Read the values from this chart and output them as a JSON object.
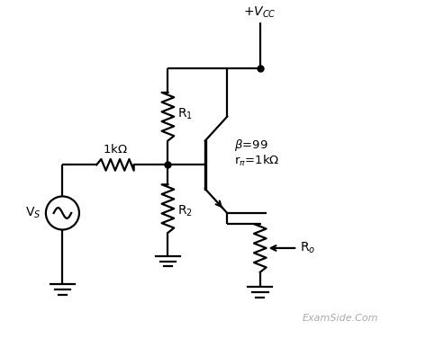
{
  "bg_color": "#ffffff",
  "line_color": "#000000",
  "resistor_color": "#000000",
  "text_color": "#000000",
  "watermark_color": "#aaaaaa",
  "fig_width": 4.83,
  "fig_height": 3.86,
  "dpi": 100,
  "watermark": "ExamSide.Com",
  "lw": 1.6
}
